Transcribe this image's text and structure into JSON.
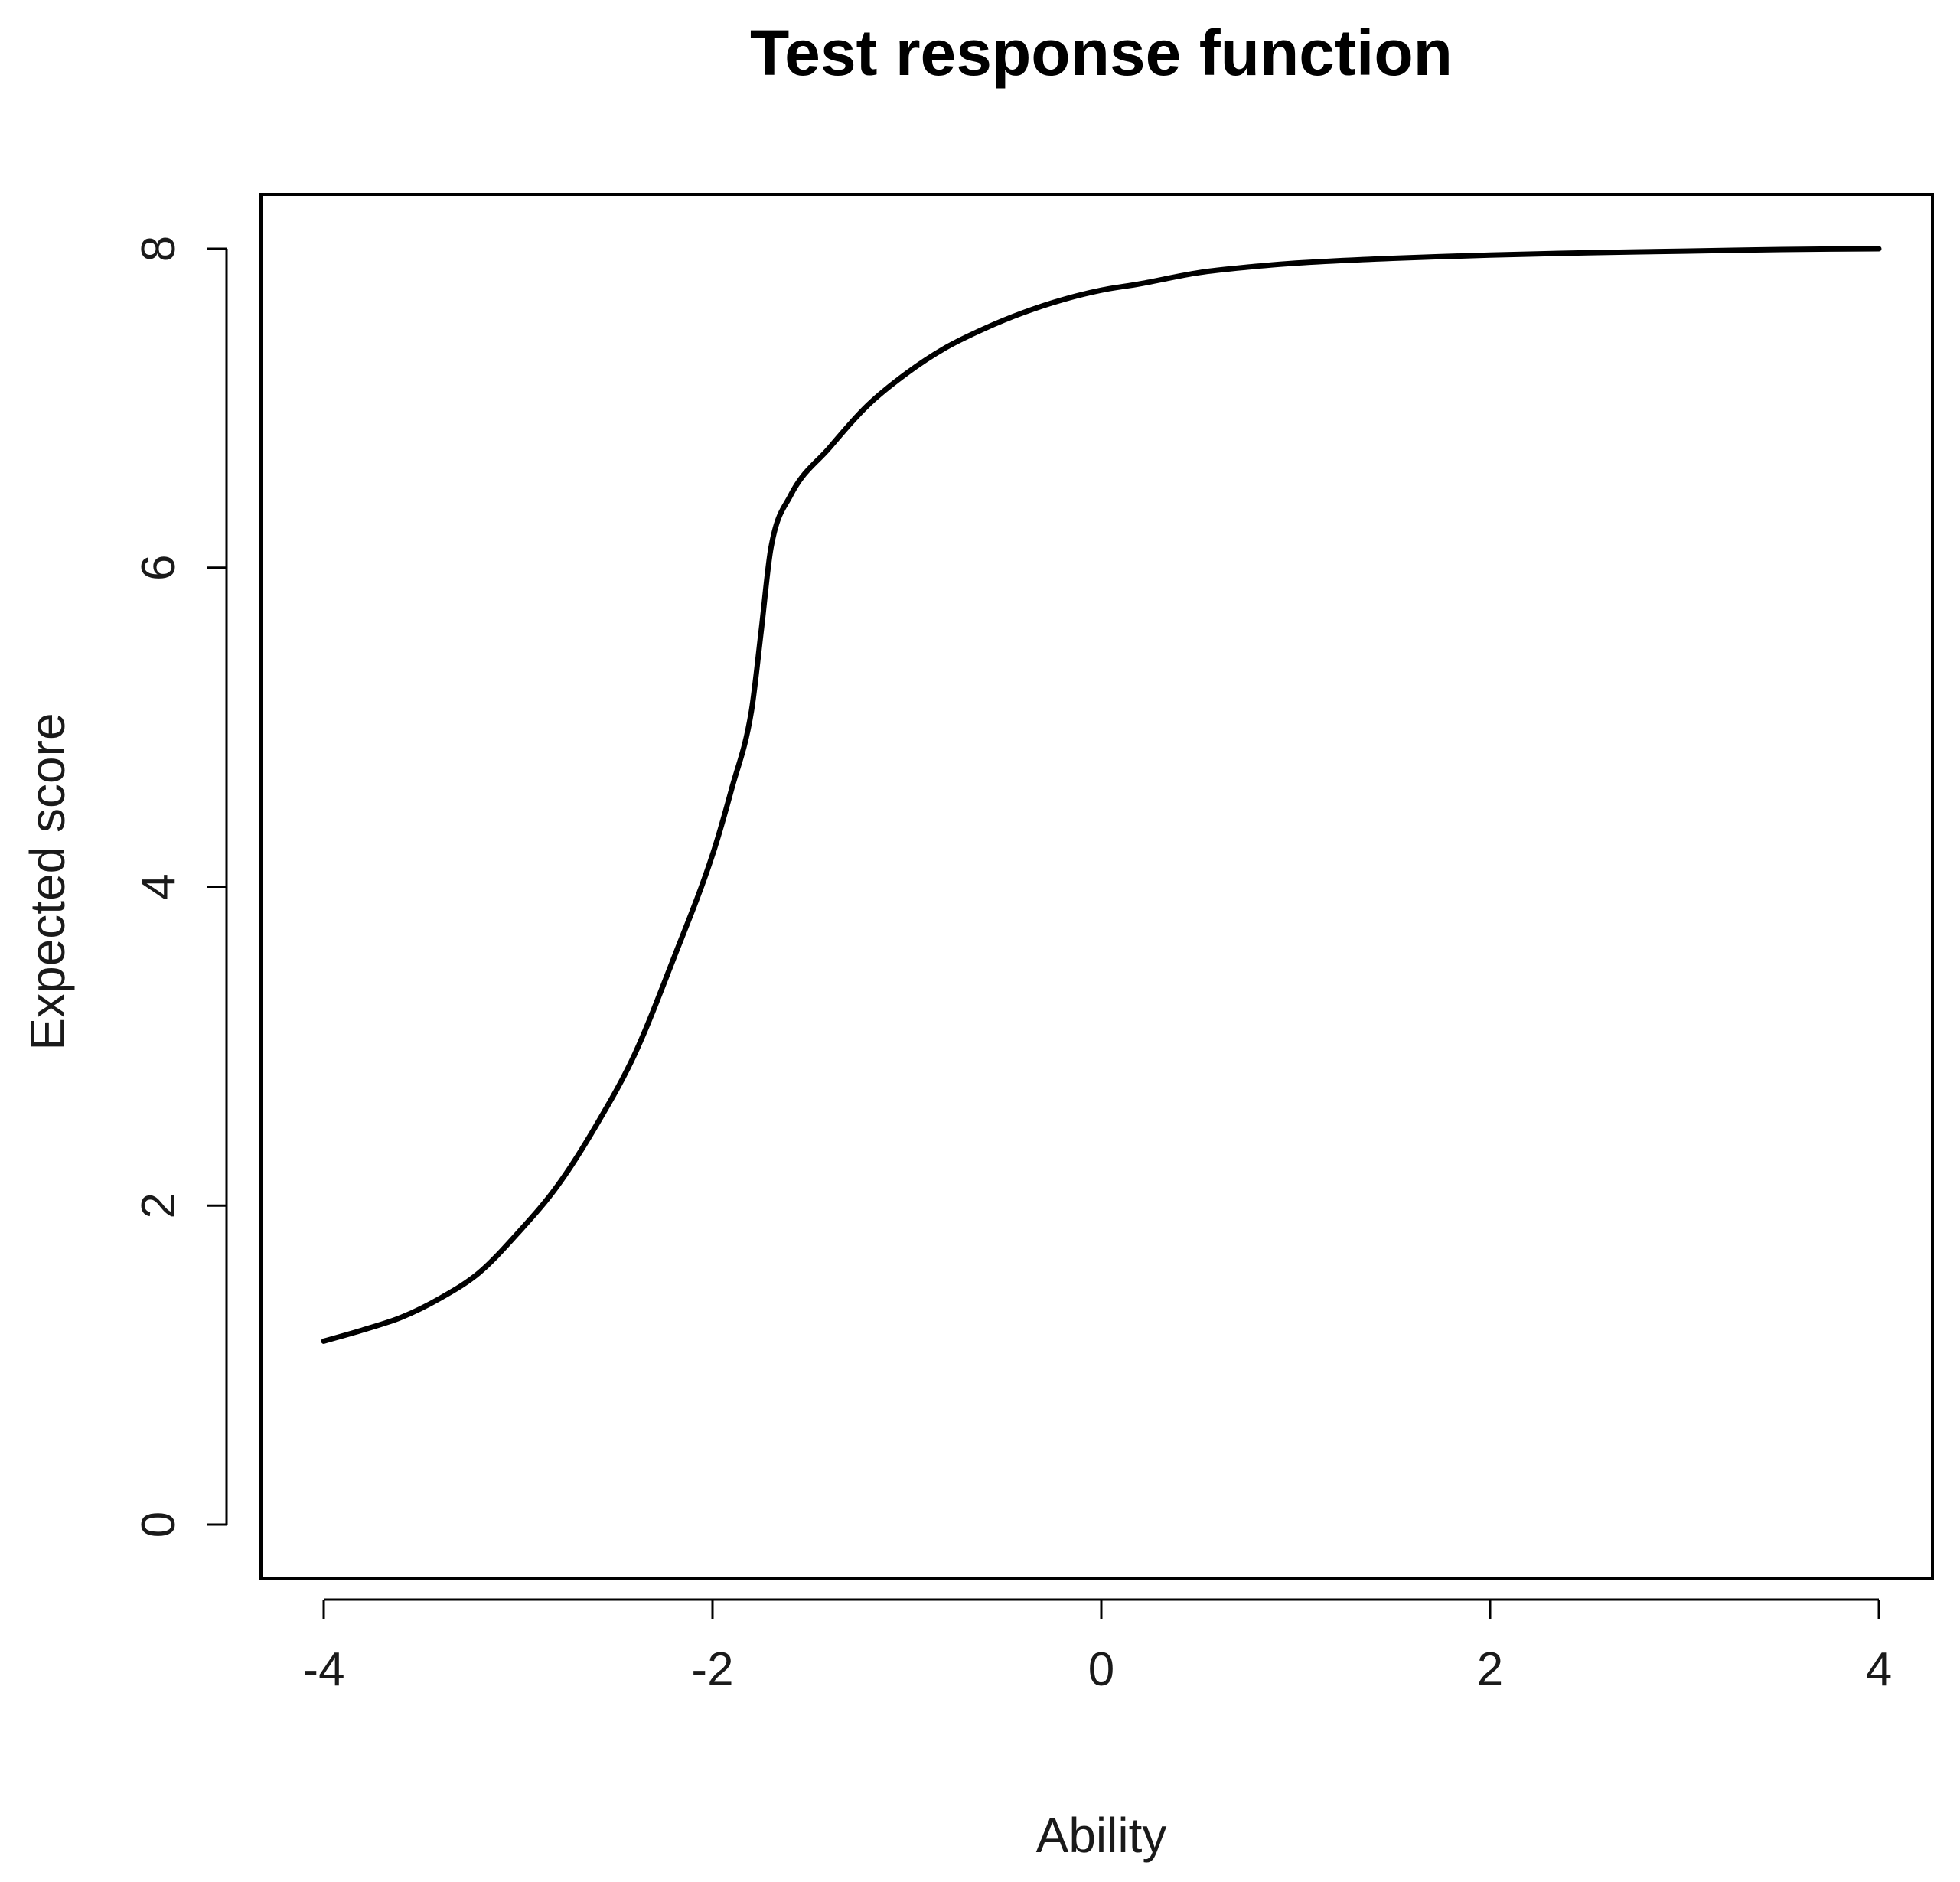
{
  "chart_data": {
    "type": "line",
    "title": "Test response function",
    "xlabel": "Ability",
    "ylabel": "Expected score",
    "xlim": [
      -4,
      4
    ],
    "ylim": [
      0,
      8
    ],
    "x_ticks": [
      -4,
      -2,
      0,
      2,
      4
    ],
    "y_ticks": [
      0,
      2,
      4,
      6,
      8
    ],
    "x_tick_labels": [
      "-4",
      "-2",
      "0",
      "2",
      "4"
    ],
    "y_tick_labels": [
      "0",
      "2",
      "4",
      "6",
      "8"
    ],
    "grid": false,
    "legend": "none",
    "line_color": "#000000",
    "series": [
      {
        "x": [
          -4.0,
          -3.8,
          -3.6,
          -3.4,
          -3.2,
          -3.0,
          -2.8,
          -2.6,
          -2.4,
          -2.2,
          -2.0,
          -1.9,
          -1.8,
          -1.75,
          -1.7,
          -1.6,
          -1.4,
          -1.2,
          -1.0,
          -0.8,
          -0.6,
          -0.4,
          -0.2,
          0.0,
          0.2,
          0.5,
          0.8,
          1.0,
          1.5,
          2.0,
          2.5,
          3.0,
          3.5,
          4.0
        ],
        "y": [
          1.15,
          1.22,
          1.3,
          1.42,
          1.58,
          1.83,
          2.12,
          2.5,
          2.95,
          3.55,
          4.2,
          4.62,
          5.1,
          5.6,
          6.12,
          6.45,
          6.75,
          7.02,
          7.22,
          7.38,
          7.5,
          7.6,
          7.68,
          7.74,
          7.78,
          7.85,
          7.89,
          7.91,
          7.94,
          7.96,
          7.975,
          7.985,
          7.995,
          8.0
        ]
      }
    ]
  }
}
